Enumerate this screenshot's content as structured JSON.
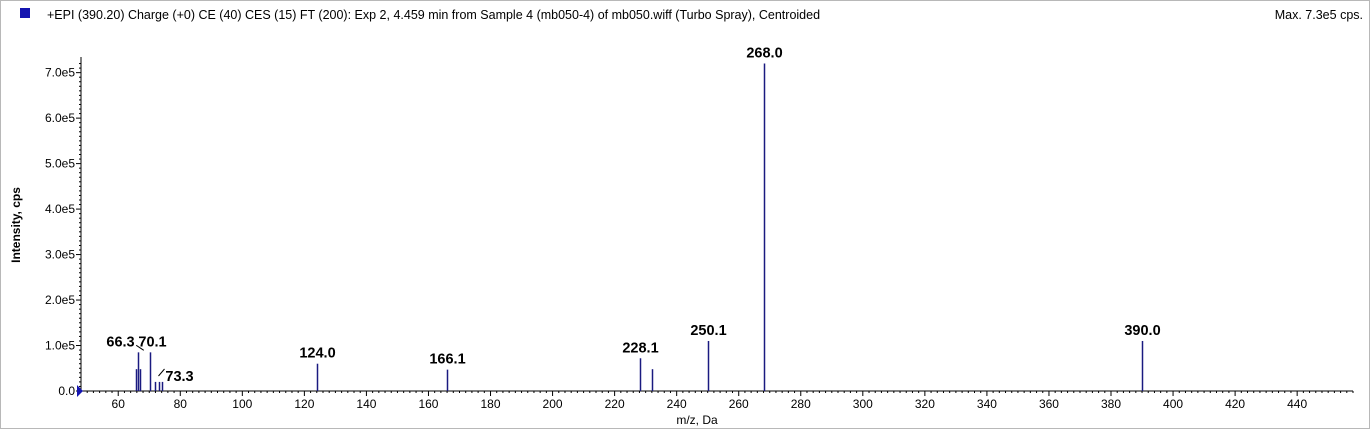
{
  "header": {
    "title": "+EPI (390.20) Charge (+0) CE (40) CES (15) FT (200): Exp 2, 4.459 min from Sample 4 (mb050-4) of mb050.wiff (Turbo Spray), Centroided",
    "max": "Max. 7.3e5 cps."
  },
  "colors": {
    "peak": "#1a1a80",
    "swatch": "#1515b0",
    "axis": "#000000",
    "marker": "#1515b0"
  },
  "chart_data": {
    "type": "bar",
    "xlabel": "m/z, Da",
    "ylabel": "Intensity, cps",
    "xlim": [
      48,
      458
    ],
    "ylim": [
      0,
      730000
    ],
    "x_ticks": [
      60,
      80,
      100,
      120,
      140,
      160,
      180,
      200,
      220,
      240,
      260,
      280,
      300,
      320,
      340,
      360,
      380,
      400,
      420,
      440
    ],
    "y_ticks": [
      {
        "value": 0,
        "label": "0.0"
      },
      {
        "value": 100000,
        "label": "1.0e5"
      },
      {
        "value": 200000,
        "label": "2.0e5"
      },
      {
        "value": 300000,
        "label": "3.0e5"
      },
      {
        "value": 400000,
        "label": "4.0e5"
      },
      {
        "value": 500000,
        "label": "5.0e5"
      },
      {
        "value": 600000,
        "label": "6.0e5"
      },
      {
        "value": 700000,
        "label": "7.0e5"
      }
    ],
    "peaks": [
      {
        "mz": 65.8,
        "intensity": 48000
      },
      {
        "mz": 66.3,
        "intensity": 85000,
        "label": "66.3"
      },
      {
        "mz": 66.9,
        "intensity": 48000
      },
      {
        "mz": 70.1,
        "intensity": 85000,
        "label": "70.1"
      },
      {
        "mz": 72.0,
        "intensity": 20000
      },
      {
        "mz": 73.3,
        "intensity": 20000,
        "label": "73.3"
      },
      {
        "mz": 74.1,
        "intensity": 20000
      },
      {
        "mz": 124.0,
        "intensity": 60000,
        "label": "124.0"
      },
      {
        "mz": 166.1,
        "intensity": 47000,
        "label": "166.1"
      },
      {
        "mz": 228.1,
        "intensity": 72000,
        "label": "228.1"
      },
      {
        "mz": 232.0,
        "intensity": 48000
      },
      {
        "mz": 250.1,
        "intensity": 110000,
        "label": "250.1"
      },
      {
        "mz": 268.0,
        "intensity": 720000,
        "label": "268.0"
      },
      {
        "mz": 390.0,
        "intensity": 110000,
        "label": "390.0"
      }
    ]
  }
}
